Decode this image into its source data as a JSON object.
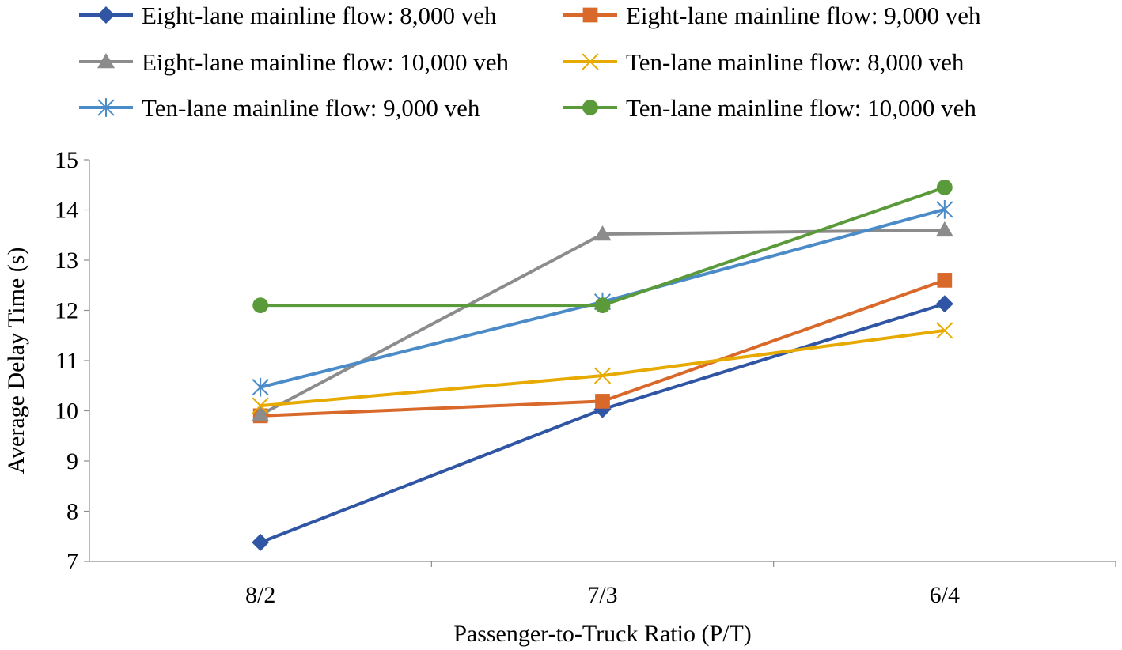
{
  "chart_data": {
    "type": "line",
    "categories": [
      "8/2",
      "7/3",
      "6/4"
    ],
    "xlabel": "Passenger-to-Truck Ratio (P/T)",
    "ylabel": "Average Delay Time (s)",
    "ylim": [
      7,
      15
    ],
    "yticks": [
      7,
      8,
      9,
      10,
      11,
      12,
      13,
      14,
      15
    ],
    "grid": false,
    "legend_position": "top",
    "series": [
      {
        "name": "Eight-lane mainline flow: 8,000 veh",
        "values": [
          7.38,
          10.03,
          12.13
        ],
        "color": "#2F55A4",
        "marker": "diamond"
      },
      {
        "name": "Eight-lane mainline flow: 9,000 veh",
        "values": [
          9.9,
          10.19,
          12.6
        ],
        "color": "#D8692A",
        "marker": "square"
      },
      {
        "name": "Eight-lane mainline flow: 10,000 veh",
        "values": [
          9.92,
          13.52,
          13.6
        ],
        "color": "#8C8C8C",
        "marker": "triangle"
      },
      {
        "name": "Ten-lane mainline flow: 8,000 veh",
        "values": [
          10.1,
          10.7,
          11.6
        ],
        "color": "#E6AA00",
        "marker": "x"
      },
      {
        "name": "Ten-lane mainline flow: 9,000 veh",
        "values": [
          10.47,
          12.17,
          14.01
        ],
        "color": "#4A8BC8",
        "marker": "asterisk"
      },
      {
        "name": "Ten-lane mainline flow: 10,000 veh",
        "values": [
          12.1,
          12.1,
          14.45
        ],
        "color": "#5B9A3A",
        "marker": "circle"
      }
    ]
  }
}
